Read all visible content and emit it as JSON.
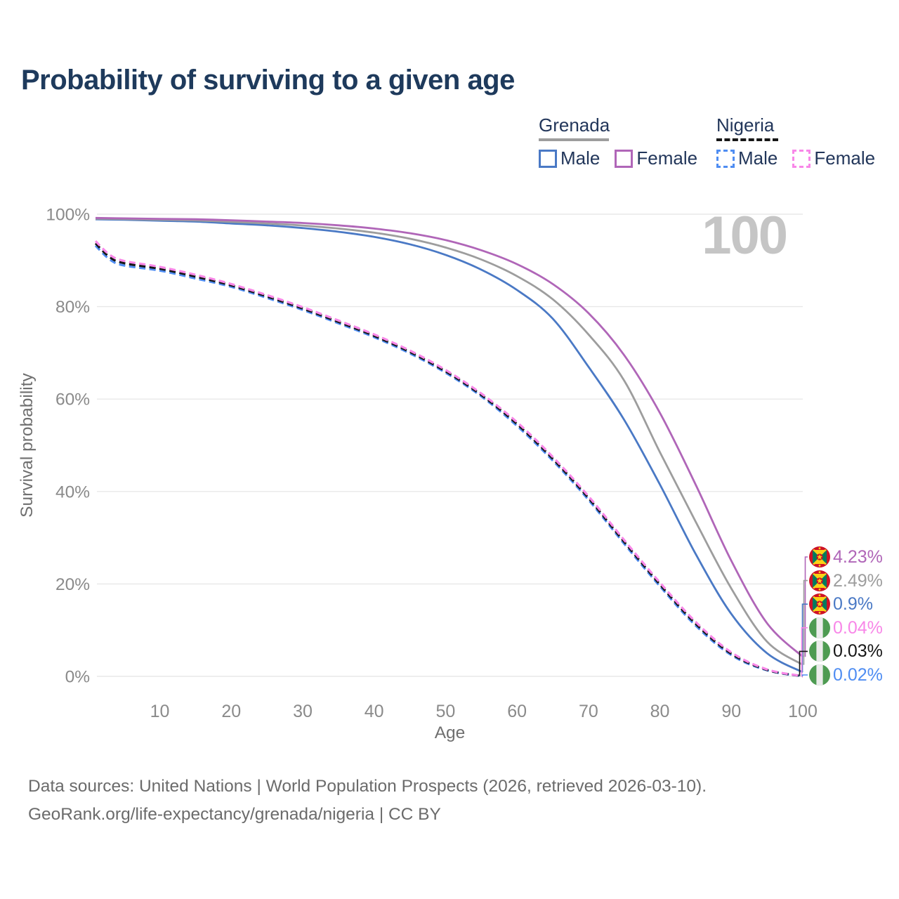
{
  "title": "Probability of surviving to a given age",
  "age_indicator": "100",
  "colors": {
    "grenada_male": "#4a79c5",
    "grenada_female": "#b066b8",
    "grenada_all": "#9d9d9d",
    "nigeria_male": "#4f8df2",
    "nigeria_female": "#f887e8",
    "nigeria_all": "#161616",
    "title_text": "#1e3a5c",
    "legend_text": "#22365a",
    "axis_text": "#8a8a8a",
    "axis_title_text": "#6f6f6f",
    "gridline": "#e8e8e8",
    "watermark": "#c5c5c5",
    "footer_text": "#6b6b6b"
  },
  "icons": {
    "grenada_flag": "grenada-flag-icon",
    "nigeria_flag": "nigeria-flag-icon"
  },
  "legend": {
    "grenada": {
      "label": "Grenada",
      "male_label": "Male",
      "female_label": "Female"
    },
    "nigeria": {
      "label": "Nigeria",
      "male_label": "Male",
      "female_label": "Female"
    }
  },
  "chart_data": {
    "type": "line",
    "title": "Probability of surviving to a given age",
    "xlabel": "Age",
    "ylabel": "Survival probability",
    "xlim": [
      1,
      100
    ],
    "ylim": [
      0,
      100
    ],
    "x_ticks": [
      10,
      20,
      30,
      40,
      50,
      60,
      70,
      80,
      90,
      100
    ],
    "y_ticks": [
      {
        "v": 0,
        "label": "0%"
      },
      {
        "v": 20,
        "label": "20%"
      },
      {
        "v": 40,
        "label": "40%"
      },
      {
        "v": 60,
        "label": "60%"
      },
      {
        "v": 80,
        "label": "80%"
      },
      {
        "v": 100,
        "label": "100%"
      }
    ],
    "grid": "horizontal",
    "legend_position": "top-right",
    "series": [
      {
        "name": "nigeria_male",
        "country": "Nigeria",
        "sex": "Male",
        "color_key": "nigeria_male",
        "dash": true,
        "points": [
          [
            1,
            93.2
          ],
          [
            3,
            90.2
          ],
          [
            5,
            88.9
          ],
          [
            10,
            87.8
          ],
          [
            15,
            86.1
          ],
          [
            20,
            84.3
          ],
          [
            25,
            81.9
          ],
          [
            30,
            79.3
          ],
          [
            35,
            76.4
          ],
          [
            40,
            73.4
          ],
          [
            45,
            69.9
          ],
          [
            50,
            65.7
          ],
          [
            55,
            60.6
          ],
          [
            60,
            54.2
          ],
          [
            65,
            46.7
          ],
          [
            70,
            38.2
          ],
          [
            75,
            28.7
          ],
          [
            80,
            19.5
          ],
          [
            85,
            11.0
          ],
          [
            90,
            4.6
          ],
          [
            95,
            1.3
          ],
          [
            100,
            0.02
          ]
        ]
      },
      {
        "name": "nigeria_all",
        "country": "Nigeria",
        "sex": "Both",
        "color_key": "nigeria_all",
        "dash": true,
        "points": [
          [
            1,
            93.7
          ],
          [
            3,
            90.7
          ],
          [
            5,
            89.4
          ],
          [
            10,
            88.2
          ],
          [
            15,
            86.5
          ],
          [
            20,
            84.6
          ],
          [
            25,
            82.2
          ],
          [
            30,
            79.6
          ],
          [
            35,
            76.7
          ],
          [
            40,
            73.7
          ],
          [
            45,
            70.2
          ],
          [
            50,
            66.0
          ],
          [
            55,
            60.9
          ],
          [
            60,
            54.6
          ],
          [
            65,
            47.1
          ],
          [
            70,
            38.6
          ],
          [
            75,
            29.1
          ],
          [
            80,
            19.9
          ],
          [
            85,
            11.4
          ],
          [
            90,
            4.9
          ],
          [
            95,
            1.4
          ],
          [
            100,
            0.03
          ]
        ]
      },
      {
        "name": "nigeria_female",
        "country": "Nigeria",
        "sex": "Female",
        "color_key": "nigeria_female",
        "dash": true,
        "points": [
          [
            1,
            94.2
          ],
          [
            3,
            91.2
          ],
          [
            5,
            89.9
          ],
          [
            10,
            88.6
          ],
          [
            15,
            86.9
          ],
          [
            20,
            84.9
          ],
          [
            25,
            82.5
          ],
          [
            30,
            79.9
          ],
          [
            35,
            77.0
          ],
          [
            40,
            74.0
          ],
          [
            45,
            70.5
          ],
          [
            50,
            66.3
          ],
          [
            55,
            61.2
          ],
          [
            60,
            55.0
          ],
          [
            65,
            47.5
          ],
          [
            70,
            39.0
          ],
          [
            75,
            29.5
          ],
          [
            80,
            20.3
          ],
          [
            85,
            11.8
          ],
          [
            90,
            5.2
          ],
          [
            95,
            1.5
          ],
          [
            100,
            0.04
          ]
        ]
      },
      {
        "name": "grenada_male",
        "country": "Grenada",
        "sex": "Male",
        "color_key": "grenada_male",
        "dash": false,
        "points": [
          [
            1,
            98.9
          ],
          [
            5,
            98.8
          ],
          [
            10,
            98.6
          ],
          [
            15,
            98.4
          ],
          [
            20,
            98.0
          ],
          [
            25,
            97.6
          ],
          [
            30,
            97.0
          ],
          [
            35,
            96.2
          ],
          [
            40,
            95.1
          ],
          [
            45,
            93.5
          ],
          [
            50,
            91.2
          ],
          [
            55,
            88.0
          ],
          [
            60,
            83.6
          ],
          [
            65,
            77.4
          ],
          [
            70,
            67.0
          ],
          [
            75,
            55.5
          ],
          [
            80,
            41.5
          ],
          [
            85,
            26.5
          ],
          [
            90,
            13.5
          ],
          [
            95,
            5.0
          ],
          [
            100,
            0.9
          ]
        ]
      },
      {
        "name": "grenada_all",
        "country": "Grenada",
        "sex": "Both",
        "color_key": "grenada_all",
        "dash": false,
        "points": [
          [
            1,
            99.05
          ],
          [
            5,
            98.95
          ],
          [
            10,
            98.8
          ],
          [
            15,
            98.65
          ],
          [
            20,
            98.35
          ],
          [
            25,
            98.0
          ],
          [
            30,
            97.55
          ],
          [
            35,
            96.9
          ],
          [
            40,
            96.0
          ],
          [
            45,
            94.7
          ],
          [
            50,
            92.8
          ],
          [
            55,
            90.2
          ],
          [
            60,
            86.6
          ],
          [
            65,
            81.6
          ],
          [
            70,
            74.0
          ],
          [
            75,
            64.0
          ],
          [
            80,
            48.5
          ],
          [
            85,
            33.5
          ],
          [
            90,
            19.0
          ],
          [
            95,
            7.5
          ],
          [
            100,
            2.49
          ]
        ]
      },
      {
        "name": "grenada_female",
        "country": "Grenada",
        "sex": "Female",
        "color_key": "grenada_female",
        "dash": false,
        "points": [
          [
            1,
            99.2
          ],
          [
            5,
            99.1
          ],
          [
            10,
            99.0
          ],
          [
            15,
            98.9
          ],
          [
            20,
            98.7
          ],
          [
            25,
            98.4
          ],
          [
            30,
            98.1
          ],
          [
            35,
            97.6
          ],
          [
            40,
            96.9
          ],
          [
            45,
            95.9
          ],
          [
            50,
            94.4
          ],
          [
            55,
            92.2
          ],
          [
            60,
            89.2
          ],
          [
            65,
            84.9
          ],
          [
            70,
            78.6
          ],
          [
            75,
            69.5
          ],
          [
            80,
            57.0
          ],
          [
            85,
            41.5
          ],
          [
            90,
            25.0
          ],
          [
            95,
            11.5
          ],
          [
            100,
            4.23
          ]
        ]
      }
    ]
  },
  "end_labels": [
    {
      "value": "4.23%",
      "series": "grenada_female",
      "color_key": "grenada_female",
      "flag": "grenada"
    },
    {
      "value": "2.49%",
      "series": "grenada_all",
      "color_key": "grenada_all",
      "flag": "grenada"
    },
    {
      "value": "0.9%",
      "series": "grenada_male",
      "color_key": "grenada_male",
      "flag": "grenada"
    },
    {
      "value": "0.04%",
      "series": "nigeria_female",
      "color_key": "nigeria_female",
      "flag": "nigeria"
    },
    {
      "value": "0.03%",
      "series": "nigeria_all",
      "color_key": "nigeria_all",
      "flag": "nigeria"
    },
    {
      "value": "0.02%",
      "series": "nigeria_male",
      "color_key": "nigeria_male",
      "flag": "nigeria"
    }
  ],
  "footer": {
    "line1": "Data sources: United Nations | World Population Prospects (2026, retrieved 2026-03-10).",
    "line2": "GeoRank.org/life-expectancy/grenada/nigeria | CC BY"
  }
}
